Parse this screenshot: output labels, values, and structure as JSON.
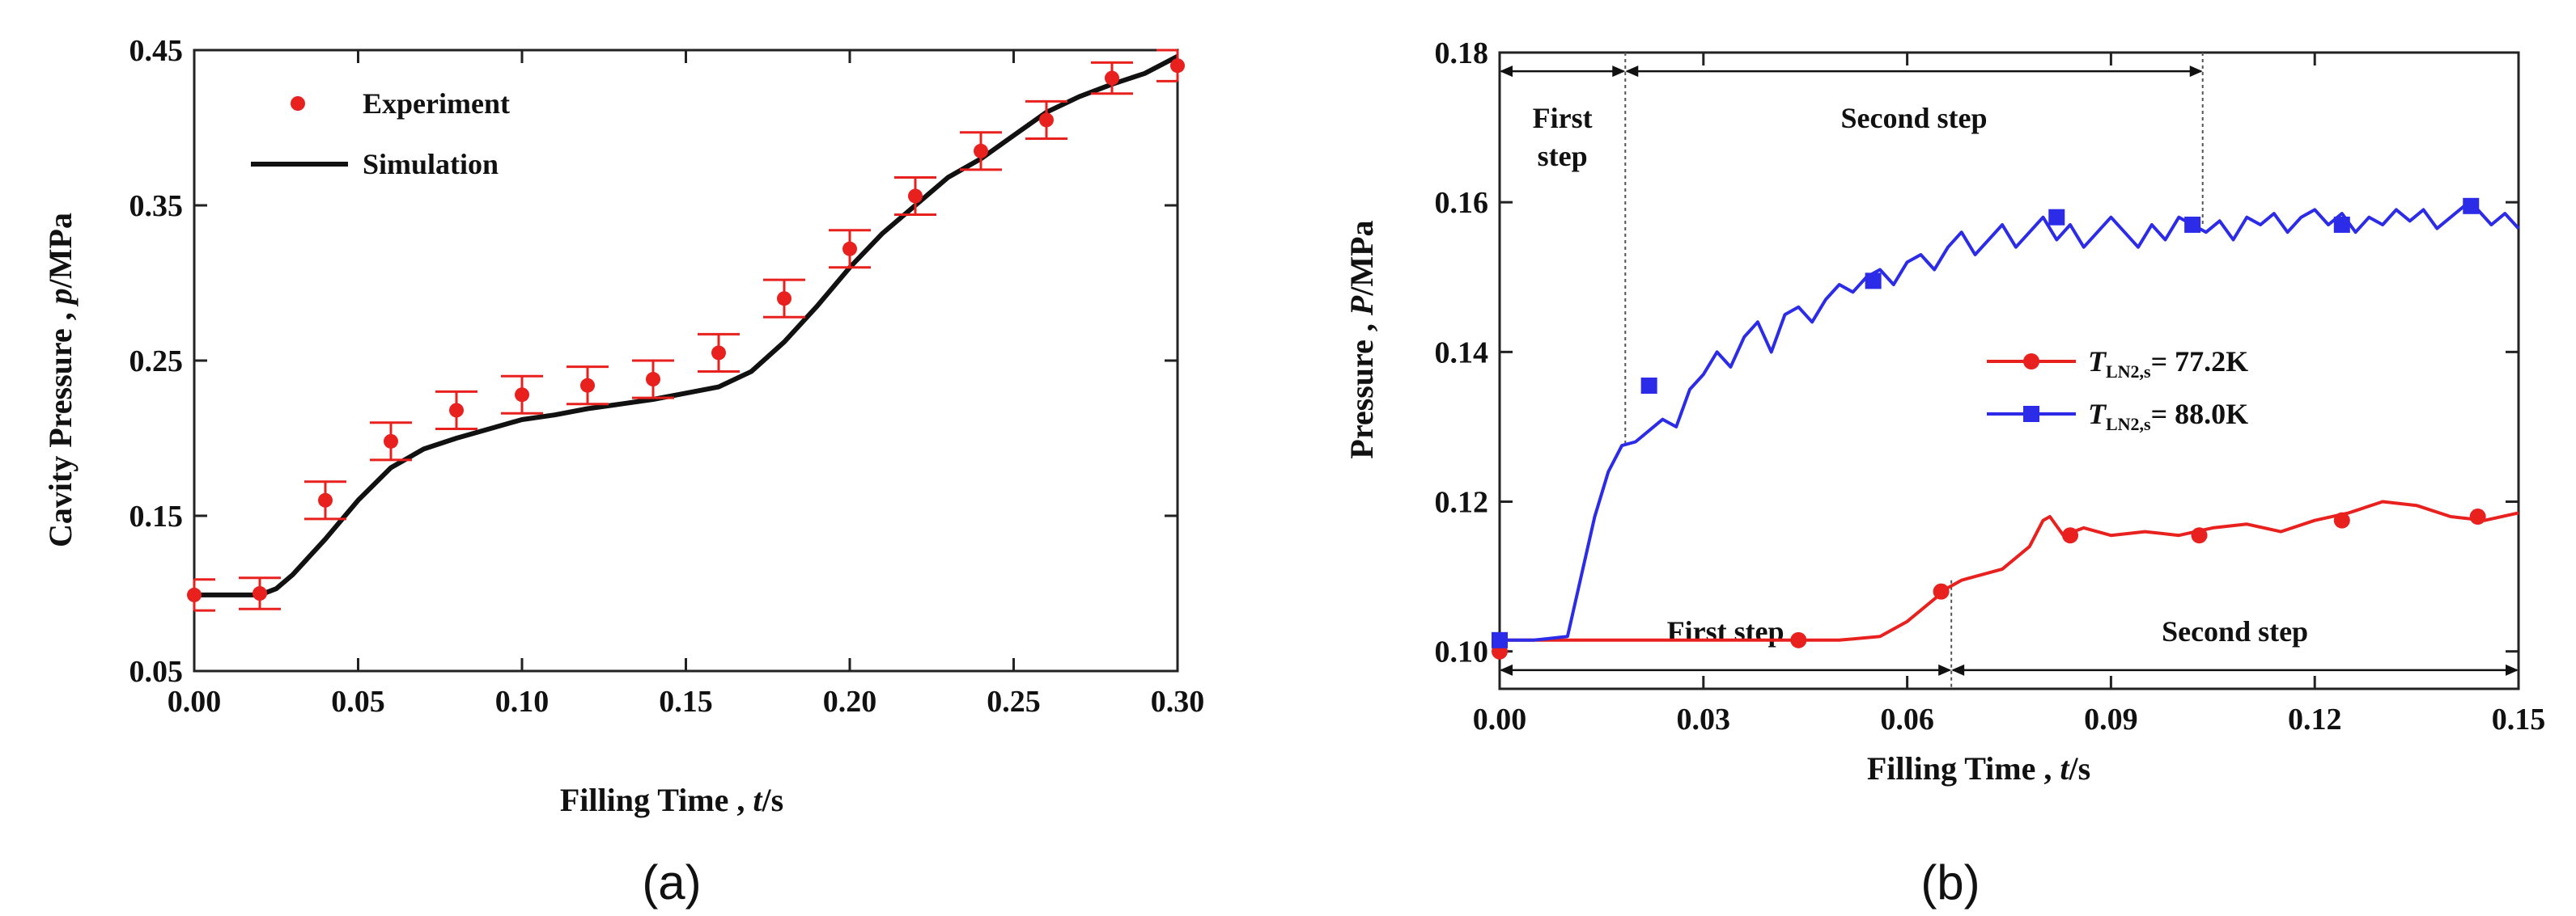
{
  "chart_data": [
    {
      "type": "scatter",
      "panel_label": "(a)",
      "xlabel_main": "Filling Time , ",
      "xlabel_var": "t",
      "xlabel_unit": "/s",
      "ylabel_main": "Cavity Pressure , ",
      "ylabel_var": "p",
      "ylabel_unit": "/MPa",
      "xlim": [
        0,
        0.3
      ],
      "ylim": [
        0.05,
        0.45
      ],
      "xticks": [
        "0.00",
        "0.05",
        "0.10",
        "0.15",
        "0.20",
        "0.25",
        "0.30"
      ],
      "yticks": [
        "0.05",
        "0.15",
        "0.25",
        "0.35",
        "0.45"
      ],
      "legend_position": "top-left",
      "grid": false,
      "series": [
        {
          "name": "Experiment",
          "kind": "points-with-error-bars",
          "color": "#e8201e",
          "x": [
            0.0,
            0.02,
            0.04,
            0.06,
            0.08,
            0.1,
            0.12,
            0.14,
            0.16,
            0.18,
            0.2,
            0.22,
            0.24,
            0.26,
            0.28,
            0.3
          ],
          "y": [
            0.099,
            0.1,
            0.16,
            0.198,
            0.218,
            0.228,
            0.234,
            0.238,
            0.255,
            0.29,
            0.322,
            0.356,
            0.385,
            0.405,
            0.432,
            0.44
          ],
          "error": [
            0.01,
            0.01,
            0.012,
            0.012,
            0.012,
            0.012,
            0.012,
            0.012,
            0.012,
            0.012,
            0.012,
            0.012,
            0.012,
            0.012,
            0.01,
            0.01
          ]
        },
        {
          "name": "Simulation",
          "kind": "line",
          "color": "#111111",
          "x": [
            0.0,
            0.01,
            0.02,
            0.025,
            0.03,
            0.04,
            0.05,
            0.06,
            0.07,
            0.08,
            0.09,
            0.1,
            0.11,
            0.12,
            0.13,
            0.14,
            0.15,
            0.16,
            0.17,
            0.18,
            0.19,
            0.2,
            0.21,
            0.22,
            0.23,
            0.24,
            0.25,
            0.26,
            0.27,
            0.28,
            0.29,
            0.3
          ],
          "y": [
            0.099,
            0.099,
            0.099,
            0.103,
            0.112,
            0.135,
            0.16,
            0.181,
            0.193,
            0.2,
            0.206,
            0.212,
            0.215,
            0.219,
            0.222,
            0.225,
            0.229,
            0.233,
            0.243,
            0.262,
            0.285,
            0.31,
            0.332,
            0.35,
            0.368,
            0.38,
            0.395,
            0.41,
            0.42,
            0.428,
            0.435,
            0.446
          ]
        }
      ]
    },
    {
      "type": "line",
      "panel_label": "(b)",
      "xlabel_main": "Filling Time , ",
      "xlabel_var": "t",
      "xlabel_unit": "/s",
      "ylabel_main": "Pressure , ",
      "ylabel_var": "P",
      "ylabel_unit": "/MPa",
      "xlim": [
        0,
        0.15
      ],
      "ylim": [
        0.095,
        0.18
      ],
      "xticks": [
        "0.00",
        "0.03",
        "0.06",
        "0.09",
        "0.12",
        "0.15"
      ],
      "yticks": [
        "0.10",
        "0.12",
        "0.14",
        "0.16",
        "0.18"
      ],
      "legend_position": "center-right",
      "grid": false,
      "annotations": {
        "top_first": [
          "First",
          "step"
        ],
        "top_second": "Second step",
        "bottom_first": "First step",
        "bottom_second": "Second step"
      },
      "series": [
        {
          "name_var": "T",
          "name_sub": "LN2,s",
          "name_value": "= 77.2K",
          "color": "#e8201e",
          "marker": "circle",
          "x": [
            0.0,
            0.01,
            0.02,
            0.03,
            0.04,
            0.05,
            0.056,
            0.06,
            0.064,
            0.066,
            0.068,
            0.07,
            0.074,
            0.078,
            0.08,
            0.081,
            0.083,
            0.086,
            0.09,
            0.095,
            0.1,
            0.105,
            0.11,
            0.115,
            0.12,
            0.125,
            0.13,
            0.135,
            0.14,
            0.145,
            0.15
          ],
          "y": [
            0.1015,
            0.1015,
            0.1015,
            0.1015,
            0.1015,
            0.1015,
            0.102,
            0.104,
            0.107,
            0.1085,
            0.1095,
            0.11,
            0.111,
            0.114,
            0.1175,
            0.118,
            0.1155,
            0.1165,
            0.1155,
            0.116,
            0.1155,
            0.1165,
            0.117,
            0.116,
            0.1175,
            0.1185,
            0.12,
            0.1195,
            0.118,
            0.1175,
            0.1185
          ],
          "marker_x": [
            0.0,
            0.044,
            0.065,
            0.084,
            0.103,
            0.124,
            0.144
          ],
          "marker_y": [
            0.1,
            0.1015,
            0.108,
            0.1155,
            0.1155,
            0.1175,
            0.118
          ]
        },
        {
          "name_var": "T",
          "name_sub": "LN2,s",
          "name_value": "= 88.0K",
          "color": "#2b2be8",
          "marker": "square",
          "x": [
            0.0,
            0.005,
            0.01,
            0.012,
            0.014,
            0.016,
            0.018,
            0.02,
            0.022,
            0.024,
            0.026,
            0.028,
            0.03,
            0.032,
            0.034,
            0.036,
            0.038,
            0.04,
            0.042,
            0.044,
            0.046,
            0.048,
            0.05,
            0.052,
            0.054,
            0.056,
            0.058,
            0.06,
            0.062,
            0.064,
            0.066,
            0.068,
            0.07,
            0.072,
            0.074,
            0.076,
            0.078,
            0.08,
            0.082,
            0.084,
            0.086,
            0.088,
            0.09,
            0.092,
            0.094,
            0.096,
            0.098,
            0.1,
            0.102,
            0.104,
            0.106,
            0.108,
            0.11,
            0.112,
            0.114,
            0.116,
            0.118,
            0.12,
            0.122,
            0.124,
            0.126,
            0.128,
            0.13,
            0.132,
            0.134,
            0.136,
            0.138,
            0.14,
            0.142,
            0.144,
            0.146,
            0.148,
            0.15
          ],
          "y": [
            0.1015,
            0.1015,
            0.102,
            0.11,
            0.118,
            0.124,
            0.1275,
            0.128,
            0.1295,
            0.131,
            0.13,
            0.135,
            0.137,
            0.14,
            0.138,
            0.142,
            0.144,
            0.14,
            0.145,
            0.146,
            0.144,
            0.147,
            0.149,
            0.148,
            0.15,
            0.151,
            0.149,
            0.152,
            0.153,
            0.151,
            0.154,
            0.156,
            0.153,
            0.155,
            0.157,
            0.154,
            0.156,
            0.158,
            0.155,
            0.157,
            0.154,
            0.156,
            0.158,
            0.156,
            0.154,
            0.157,
            0.155,
            0.158,
            0.157,
            0.156,
            0.1575,
            0.155,
            0.158,
            0.157,
            0.1585,
            0.156,
            0.158,
            0.159,
            0.157,
            0.1585,
            0.156,
            0.158,
            0.157,
            0.159,
            0.1575,
            0.159,
            0.1565,
            0.158,
            0.1595,
            0.159,
            0.157,
            0.1585,
            0.1565
          ],
          "marker_x": [
            0.0,
            0.022,
            0.055,
            0.082,
            0.102,
            0.124,
            0.143
          ],
          "marker_y": [
            0.1015,
            0.1355,
            0.1495,
            0.158,
            0.157,
            0.157,
            0.1595
          ]
        }
      ]
    }
  ]
}
